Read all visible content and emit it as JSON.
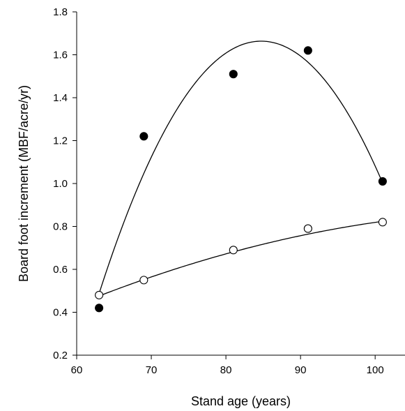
{
  "chart_data": {
    "type": "scatter",
    "title": "",
    "xlabel": "Stand age (years)",
    "ylabel": "Board foot increment (MBF/acre/yr)",
    "xlim": [
      60,
      104
    ],
    "ylim": [
      0.2,
      1.8
    ],
    "x_ticks": [
      60,
      70,
      80,
      90,
      100
    ],
    "x_tick_labels": [
      "60",
      "70",
      "80",
      "90",
      "100"
    ],
    "y_ticks": [
      0.2,
      0.4,
      0.6,
      0.8,
      1.0,
      1.2,
      1.4,
      1.6,
      1.8
    ],
    "y_tick_labels": [
      "0.2",
      "0.4",
      "0.6",
      "0.8",
      "1.0",
      "1.2",
      "1.4",
      "1.6",
      "1.8"
    ],
    "grid": false,
    "legend": "none",
    "series": [
      {
        "marker": "filled-circle",
        "color": "#000000",
        "x": [
          63,
          69,
          81,
          91,
          101
        ],
        "y": [
          0.42,
          1.22,
          1.51,
          1.62,
          1.01
        ],
        "fit": {
          "type": "quadratic",
          "x": [
            63,
            69,
            75,
            80,
            84.5,
            90,
            95,
            101
          ],
          "y": [
            0.48,
            1.06,
            1.42,
            1.61,
            1.67,
            1.59,
            1.39,
            1.01
          ]
        }
      },
      {
        "marker": "open-circle",
        "color": "#000000",
        "x": [
          63,
          69,
          81,
          91,
          101
        ],
        "y": [
          0.48,
          0.55,
          0.69,
          0.79,
          0.82
        ],
        "fit": {
          "type": "quadratic",
          "x": [
            63,
            67,
            72,
            78,
            84,
            90,
            96,
            101
          ],
          "y": [
            0.48,
            0.525,
            0.585,
            0.65,
            0.71,
            0.76,
            0.8,
            0.82
          ]
        }
      }
    ]
  }
}
